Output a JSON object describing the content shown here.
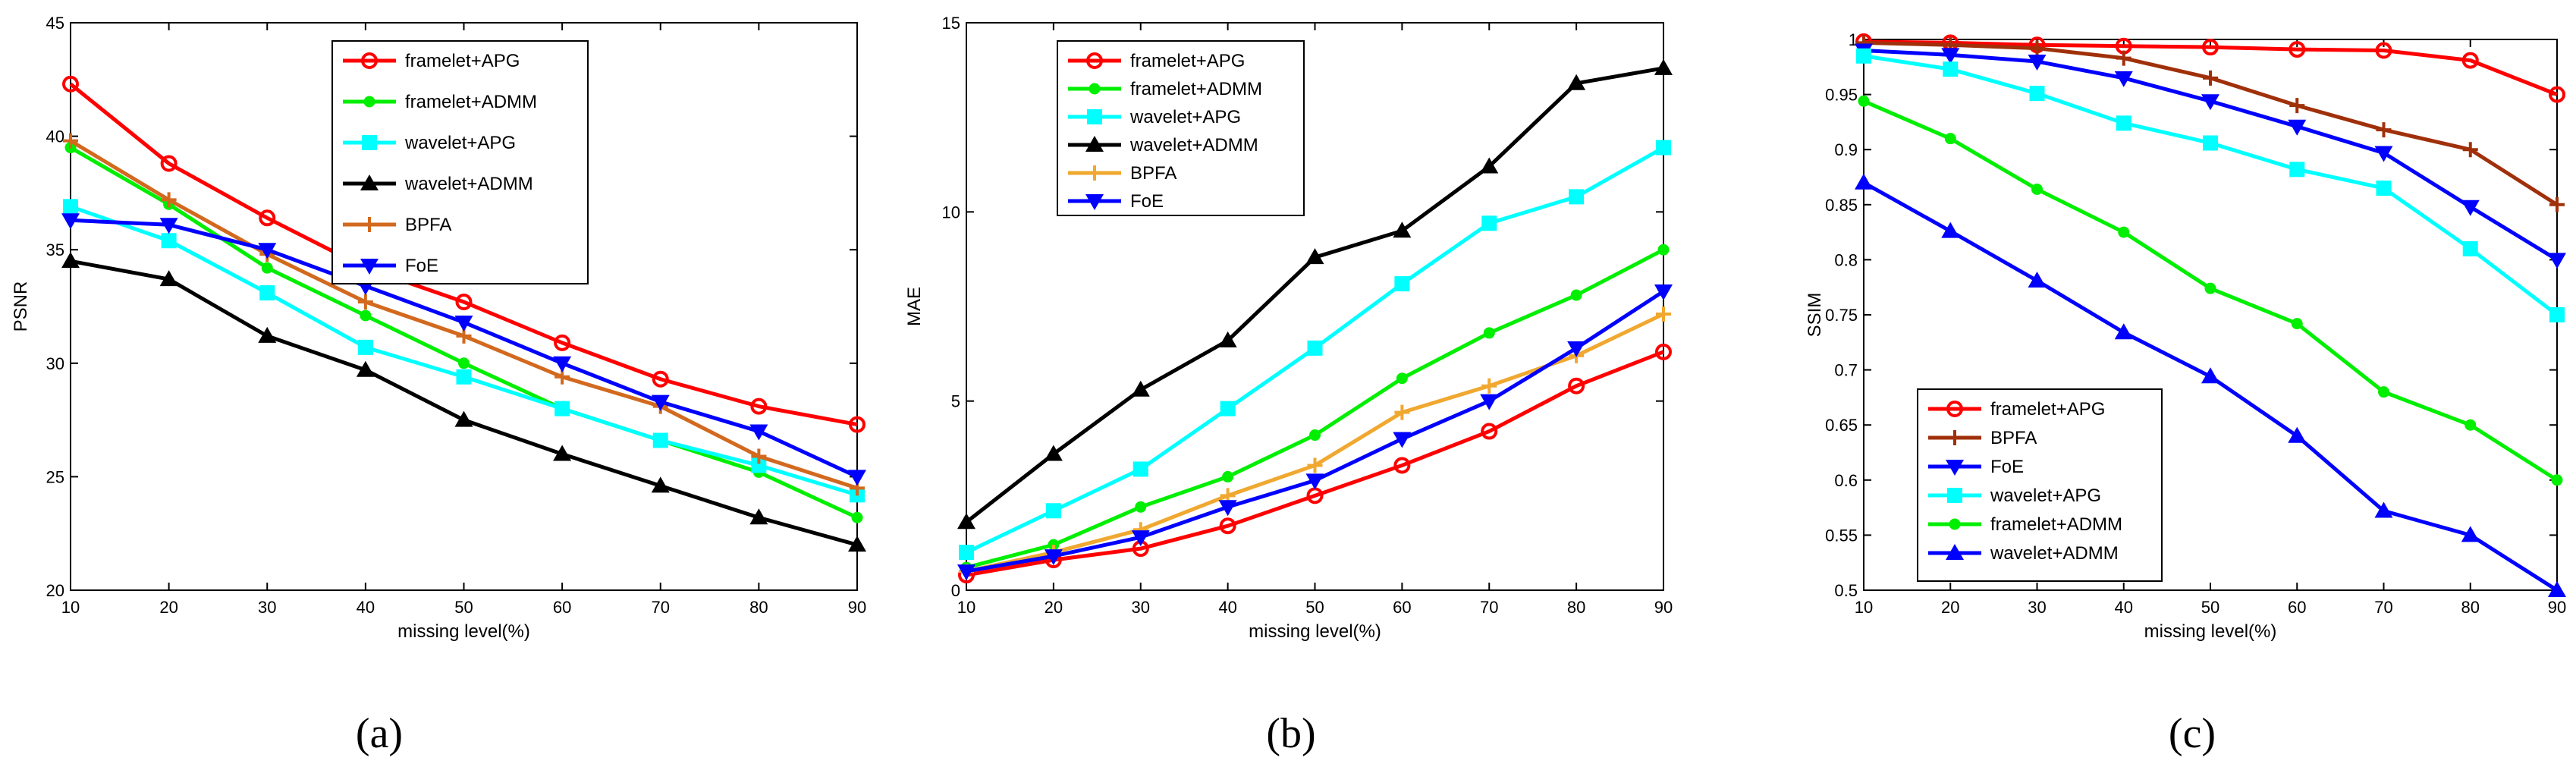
{
  "chart_data": [
    {
      "type": "line",
      "caption": "(a)",
      "xlabel": "missing level(%)",
      "ylabel": "PSNR",
      "x": [
        10,
        20,
        30,
        40,
        50,
        60,
        70,
        80,
        90
      ],
      "xlim": [
        10,
        90
      ],
      "ylim": [
        20,
        45
      ],
      "xticks": [
        "10",
        "20",
        "30",
        "40",
        "50",
        "60",
        "70",
        "80",
        "90"
      ],
      "yticks": [
        "20",
        "25",
        "30",
        "35",
        "40",
        "45"
      ],
      "legend_position": "top-center",
      "series": [
        {
          "name": "framelet+APG",
          "color": "#ff0000",
          "marker": "circle",
          "values": [
            42.3,
            38.8,
            36.4,
            34.2,
            32.7,
            30.9,
            29.3,
            28.1,
            27.3
          ]
        },
        {
          "name": "framelet+ADMM",
          "color": "#00ee00",
          "marker": "dot",
          "values": [
            39.5,
            37.0,
            34.2,
            32.1,
            30.0,
            28.0,
            26.6,
            25.2,
            23.2
          ]
        },
        {
          "name": "wavelet+APG",
          "color": "#00ffff",
          "marker": "square",
          "values": [
            36.9,
            35.4,
            33.1,
            30.7,
            29.4,
            28.0,
            26.6,
            25.5,
            24.2
          ]
        },
        {
          "name": "wavelet+ADMM",
          "color": "#000000",
          "marker": "triangle-up",
          "values": [
            34.5,
            33.7,
            31.2,
            29.7,
            27.5,
            26.0,
            24.6,
            23.2,
            22.0
          ]
        },
        {
          "name": "BPFA",
          "color": "#d2691e",
          "marker": "plus",
          "values": [
            39.8,
            37.2,
            34.8,
            32.7,
            31.2,
            29.4,
            28.1,
            25.9,
            24.5
          ]
        },
        {
          "name": "FoE",
          "color": "#0000ff",
          "marker": "triangle-down",
          "values": [
            36.3,
            36.1,
            35.0,
            33.4,
            31.8,
            30.0,
            28.3,
            27.0,
            25.0
          ]
        }
      ]
    },
    {
      "type": "line",
      "caption": "(b)",
      "xlabel": "missing level(%)",
      "ylabel": "MAE",
      "x": [
        10,
        20,
        30,
        40,
        50,
        60,
        70,
        80,
        90
      ],
      "xlim": [
        10,
        90
      ],
      "ylim": [
        0,
        15
      ],
      "xticks": [
        "10",
        "20",
        "30",
        "40",
        "50",
        "60",
        "70",
        "80",
        "90"
      ],
      "yticks": [
        "0",
        "5",
        "10",
        "15"
      ],
      "legend_position": "top-left",
      "series": [
        {
          "name": "framelet+APG",
          "color": "#ff0000",
          "marker": "circle",
          "values": [
            0.4,
            0.8,
            1.1,
            1.7,
            2.5,
            3.3,
            4.2,
            5.4,
            6.3
          ]
        },
        {
          "name": "framelet+ADMM",
          "color": "#00ee00",
          "marker": "dot",
          "values": [
            0.6,
            1.2,
            2.2,
            3.0,
            4.1,
            5.6,
            6.8,
            7.8,
            9.0
          ]
        },
        {
          "name": "wavelet+APG",
          "color": "#00ffff",
          "marker": "square",
          "values": [
            1.0,
            2.1,
            3.2,
            4.8,
            6.4,
            8.1,
            9.7,
            10.4,
            11.7
          ]
        },
        {
          "name": "wavelet+ADMM",
          "color": "#000000",
          "marker": "triangle-up",
          "values": [
            1.8,
            3.6,
            5.3,
            6.6,
            8.8,
            9.5,
            11.2,
            13.4,
            13.8
          ]
        },
        {
          "name": "BPFA",
          "color": "#f0a830",
          "marker": "plus",
          "values": [
            0.5,
            1.0,
            1.6,
            2.5,
            3.3,
            4.7,
            5.4,
            6.2,
            7.3
          ]
        },
        {
          "name": "FoE",
          "color": "#0000ff",
          "marker": "triangle-down",
          "values": [
            0.5,
            0.9,
            1.4,
            2.2,
            2.9,
            4.0,
            5.0,
            6.4,
            7.9
          ]
        }
      ]
    },
    {
      "type": "line",
      "caption": "(c)",
      "xlabel": "missing level(%)",
      "ylabel": "SSIM",
      "x": [
        10,
        20,
        30,
        40,
        50,
        60,
        70,
        80,
        90
      ],
      "xlim": [
        10,
        90
      ],
      "ylim": [
        0.5,
        1
      ],
      "xticks": [
        "10",
        "20",
        "30",
        "40",
        "50",
        "60",
        "70",
        "80",
        "90"
      ],
      "yticks": [
        "0.5",
        "0.55",
        "0.6",
        "0.65",
        "0.7",
        "0.75",
        "0.8",
        "0.85",
        "0.9",
        "0.95",
        "1"
      ],
      "legend_position": "bottom-left",
      "series": [
        {
          "name": "framelet+APG",
          "color": "#ff0000",
          "marker": "circle",
          "values": [
            0.998,
            0.997,
            0.995,
            0.994,
            0.993,
            0.991,
            0.99,
            0.981,
            0.95
          ]
        },
        {
          "name": "BPFA",
          "color": "#a0300a",
          "marker": "plus",
          "values": [
            0.997,
            0.995,
            0.992,
            0.983,
            0.965,
            0.94,
            0.918,
            0.9,
            0.85
          ]
        },
        {
          "name": "FoE",
          "color": "#0000ff",
          "marker": "triangle-down",
          "values": [
            0.99,
            0.986,
            0.98,
            0.965,
            0.944,
            0.921,
            0.897,
            0.848,
            0.8
          ]
        },
        {
          "name": "wavelet+APG",
          "color": "#00ffff",
          "marker": "square",
          "values": [
            0.985,
            0.973,
            0.951,
            0.924,
            0.906,
            0.882,
            0.865,
            0.81,
            0.75
          ]
        },
        {
          "name": "framelet+ADMM",
          "color": "#00ee00",
          "marker": "dot",
          "values": [
            0.944,
            0.91,
            0.864,
            0.825,
            0.774,
            0.742,
            0.68,
            0.65,
            0.6
          ]
        },
        {
          "name": "wavelet+ADMM",
          "color": "#0000ff",
          "marker": "triangle-up",
          "values": [
            0.87,
            0.826,
            0.781,
            0.734,
            0.694,
            0.64,
            0.572,
            0.55,
            0.5
          ]
        }
      ]
    }
  ]
}
